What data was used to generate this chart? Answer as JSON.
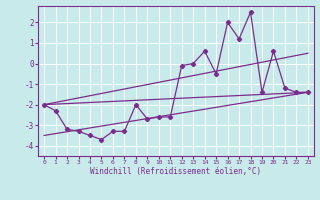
{
  "xlabel": "Windchill (Refroidissement éolien,°C)",
  "bg_color": "#c8eaea",
  "grid_color": "#ffffff",
  "line_color": "#7b2d8b",
  "x_values": [
    0,
    1,
    2,
    3,
    4,
    5,
    6,
    7,
    8,
    9,
    10,
    11,
    12,
    13,
    14,
    15,
    16,
    17,
    18,
    19,
    20,
    21,
    22,
    23
  ],
  "y_main": [
    -2.0,
    -2.3,
    -3.2,
    -3.3,
    -3.5,
    -3.7,
    -3.3,
    -3.3,
    -2.0,
    -2.7,
    -2.6,
    -2.6,
    -0.1,
    0.0,
    0.6,
    -0.5,
    2.0,
    1.2,
    2.5,
    -1.4,
    0.6,
    -1.2,
    -1.4,
    -1.4
  ],
  "ylim": [
    -4.5,
    2.8
  ],
  "xlim": [
    -0.5,
    23.5
  ],
  "yticks": [
    -4,
    -3,
    -2,
    -1,
    0,
    1,
    2
  ],
  "reg_line1_x": [
    0,
    23
  ],
  "reg_line1_y": [
    -2.0,
    -1.4
  ],
  "reg_line2_x": [
    0,
    23
  ],
  "reg_line2_y": [
    -2.0,
    0.5
  ],
  "reg_line3_x": [
    0,
    23
  ],
  "reg_line3_y": [
    -3.5,
    -1.4
  ]
}
